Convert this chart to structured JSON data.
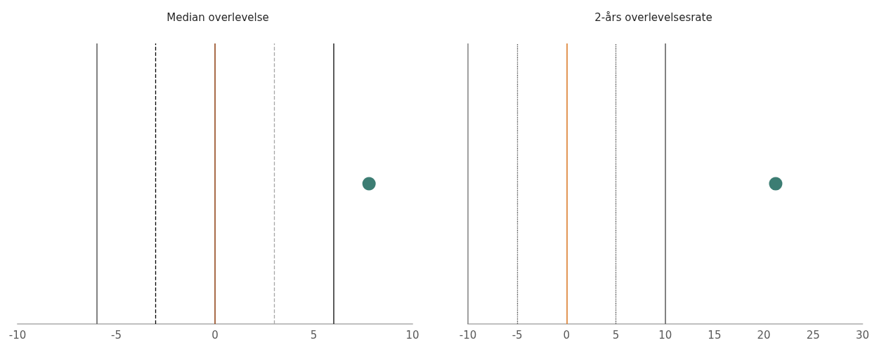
{
  "chart_data": [
    {
      "type": "scatter",
      "title": "Median overlevelse",
      "orientation": "horizontal",
      "categories": [
        null
      ],
      "marker": "circle",
      "grid": false,
      "series": [
        {
          "color": "#0b5c50",
          "values": [
            7.8
          ]
        }
      ],
      "xlim": [
        -10,
        10
      ],
      "xticks": [
        -10,
        -5,
        0,
        5,
        10
      ],
      "ref_lines": [
        {
          "axis": "x",
          "value": -6,
          "color": "#595959",
          "line_style": "solid"
        },
        {
          "axis": "x",
          "value": -3,
          "color": "#000000",
          "line_style": "dashed"
        },
        {
          "axis": "x",
          "value": 0,
          "color": "#8b3a0b",
          "line_style": "solid"
        },
        {
          "axis": "x",
          "value": 3,
          "color": "#a6a6a6",
          "line_style": "dashed"
        },
        {
          "axis": "x",
          "value": 6,
          "color": "#262626",
          "line_style": "solid"
        }
      ]
    },
    {
      "type": "scatter",
      "title": "2-års overlevelsesrate",
      "orientation": "horizontal",
      "categories": [
        null
      ],
      "marker": "circle",
      "grid": false,
      "series": [
        {
          "color": "#0b5c50",
          "values": [
            21.2
          ]
        }
      ],
      "xlim": [
        -10,
        30
      ],
      "xticks": [
        -10,
        -5,
        0,
        5,
        10,
        15,
        20,
        25,
        30
      ],
      "ref_lines": [
        {
          "axis": "x",
          "value": -10,
          "color": "#808080",
          "line_style": "solid"
        },
        {
          "axis": "x",
          "value": -5,
          "color": "#404040",
          "line_style": "dotted"
        },
        {
          "axis": "x",
          "value": 0,
          "color": "#d9731c",
          "line_style": "solid"
        },
        {
          "axis": "x",
          "value": 5,
          "color": "#404040",
          "line_style": "dotted"
        },
        {
          "axis": "x",
          "value": 10,
          "color": "#595959",
          "line_style": "solid"
        }
      ]
    }
  ]
}
